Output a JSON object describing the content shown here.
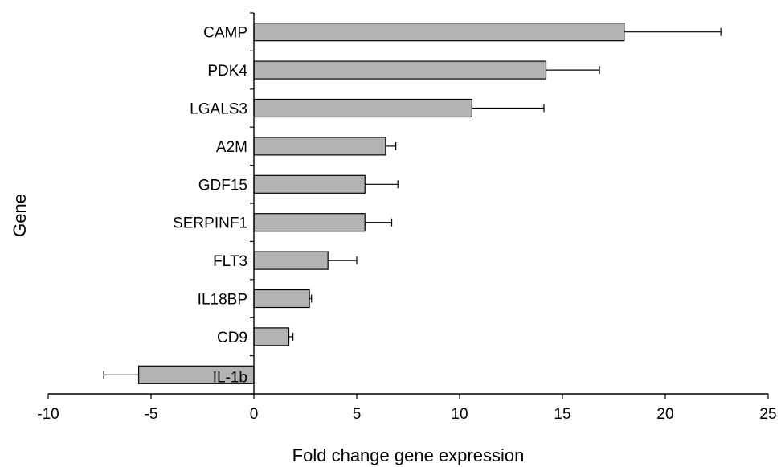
{
  "chart_data": {
    "type": "bar",
    "orientation": "horizontal",
    "categories": [
      "CAMP",
      "PDK4",
      "LGALS3",
      "A2M",
      "GDF15",
      "SERPINF1",
      "FLT3",
      "IL18BP",
      "CD9",
      "IL-1b"
    ],
    "values": [
      18.0,
      14.2,
      10.6,
      6.4,
      5.4,
      5.4,
      3.6,
      2.7,
      1.7,
      -5.6
    ],
    "errors": [
      4.7,
      2.6,
      3.5,
      0.5,
      1.6,
      1.3,
      1.4,
      0.1,
      0.2,
      1.7
    ],
    "xlabel": "Fold change gene expression",
    "ylabel": "Gene",
    "xlim": [
      -10,
      25
    ],
    "xticks": [
      -10,
      -5,
      0,
      5,
      10,
      15,
      20,
      25
    ],
    "grid": false,
    "bar_color": "#b3b3b3",
    "bar_edge_color": "#000000"
  }
}
